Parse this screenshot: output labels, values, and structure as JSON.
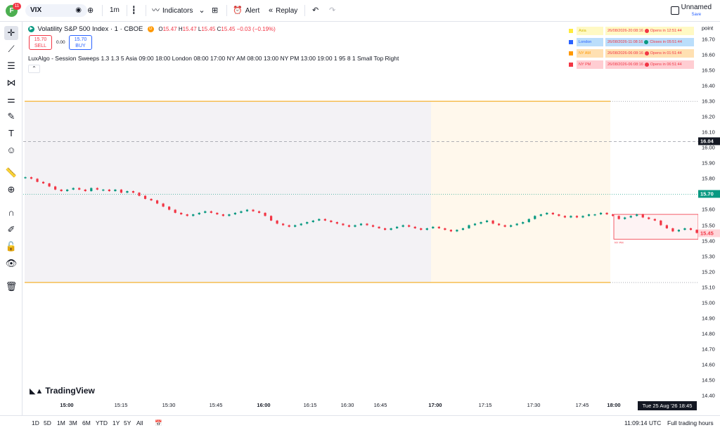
{
  "topbar": {
    "avatar_letter": "F",
    "badge": "11",
    "symbol": "VIX",
    "interval": "1m",
    "indicators": "Indicators",
    "alert": "Alert",
    "replay": "Replay",
    "layout_name": "Unnamed",
    "save": "Save"
  },
  "legend": {
    "title": "Volatility S&P 500 Index · 1 · CBOE",
    "market_badge": "D",
    "open_label": "O",
    "open": "15.47",
    "high_label": "H",
    "high": "15.47",
    "low_label": "L",
    "low": "15.45",
    "close_label": "C",
    "close": "15.45",
    "change": "−0.03 (−0.19%)",
    "sell_price": "15.70",
    "sell_label": "SELL",
    "spread": "0.00",
    "buy_price": "15.70",
    "buy_label": "BUY",
    "indicator": "LuxAlgo - Session Sweeps 1.3 1.3 5 Asia 09:00 18:00 London 08:00 17:00 NY AM 08:00 13:00 NY PM 13:00 19:00 1 95 8 1 Small Top Right"
  },
  "sessions": [
    {
      "name": "Asia",
      "time": "26/08/2026-20:08:16",
      "status": "Opens in 12:51:44",
      "color": "#ffeb3b",
      "dot": "#f23645",
      "bg": "#fff9c4"
    },
    {
      "name": "London",
      "time": "26/08/2026-11:08:16",
      "status": "Closes in 05:51:44",
      "color": "#2962ff",
      "dot": "#089981",
      "bg": "#bbdefb"
    },
    {
      "name": "NY AM",
      "time": "26/08/2026-06:08:16",
      "status": "Opens in 01:51:44",
      "color": "#ff9800",
      "dot": "#f23645",
      "bg": "#ffe0b2"
    },
    {
      "name": "NY PM",
      "time": "26/08/2026-06:08:16",
      "status": "Opens in 06:51:44",
      "color": "#f23645",
      "dot": "#f23645",
      "bg": "#ffcdd2"
    }
  ],
  "price_axis": {
    "unit": "point",
    "ticks": [
      "16.70",
      "16.60",
      "16.50",
      "16.40",
      "16.30",
      "16.20",
      "16.10",
      "16.00",
      "15.90",
      "15.80",
      "15.70",
      "15.60",
      "15.50",
      "15.40",
      "15.30",
      "15.20",
      "15.10",
      "15.00",
      "14.90",
      "14.80",
      "14.70",
      "14.60",
      "14.50",
      "14.40"
    ],
    "crosshair_price": "16.04",
    "last_price": "15.70",
    "current_price": "15.45"
  },
  "time_axis": {
    "ticks": [
      "15:00",
      "15:15",
      "15:30",
      "15:45",
      "16:00",
      "16:15",
      "16:30",
      "16:45",
      "17:00",
      "17:15",
      "17:30",
      "17:45",
      "18:00"
    ],
    "cursor_time": "Tue 25 Aug '26   18:45"
  },
  "chart_data": {
    "type": "candlestick",
    "price_range": [
      14.38,
      16.76
    ],
    "levels": {
      "upper_session": 16.3,
      "lower_session": 15.13,
      "crosshair": 16.04,
      "last": 15.7
    },
    "candles": [
      15.81,
      15.8,
      15.78,
      15.77,
      15.75,
      15.73,
      15.72,
      15.73,
      15.74,
      15.73,
      15.72,
      15.74,
      15.73,
      15.73,
      15.72,
      15.73,
      15.71,
      15.72,
      15.71,
      15.69,
      15.67,
      15.66,
      15.64,
      15.62,
      15.6,
      15.58,
      15.57,
      15.56,
      15.57,
      15.58,
      15.59,
      15.58,
      15.57,
      15.56,
      15.57,
      15.58,
      15.59,
      15.6,
      15.59,
      15.58,
      15.56,
      15.53,
      15.51,
      15.5,
      15.49,
      15.5,
      15.51,
      15.52,
      15.53,
      15.54,
      15.53,
      15.52,
      15.51,
      15.5,
      15.49,
      15.5,
      15.51,
      15.5,
      15.49,
      15.48,
      15.47,
      15.48,
      15.49,
      15.5,
      15.49,
      15.48,
      15.47,
      15.48,
      15.49,
      15.48,
      15.47,
      15.46,
      15.47,
      15.48,
      15.5,
      15.51,
      15.52,
      15.53,
      15.51,
      15.5,
      15.49,
      15.5,
      15.51,
      15.52,
      15.54,
      15.56,
      15.57,
      15.58,
      15.57,
      15.56,
      15.55,
      15.56,
      15.55,
      15.56,
      15.57,
      15.57,
      15.58,
      15.57,
      15.56,
      15.54,
      15.55,
      15.56,
      15.57,
      15.55,
      15.54,
      15.53,
      15.5,
      15.48,
      15.46,
      15.47,
      15.48,
      15.47,
      15.45
    ],
    "sweep_label": "NY PM"
  },
  "bottombar": {
    "ranges": [
      "1D",
      "5D",
      "1M",
      "3M",
      "6M",
      "YTD",
      "1Y",
      "5Y",
      "All"
    ],
    "clock": "11:09:14 UTC",
    "session": "Full trading hours"
  },
  "brand": "TradingView"
}
